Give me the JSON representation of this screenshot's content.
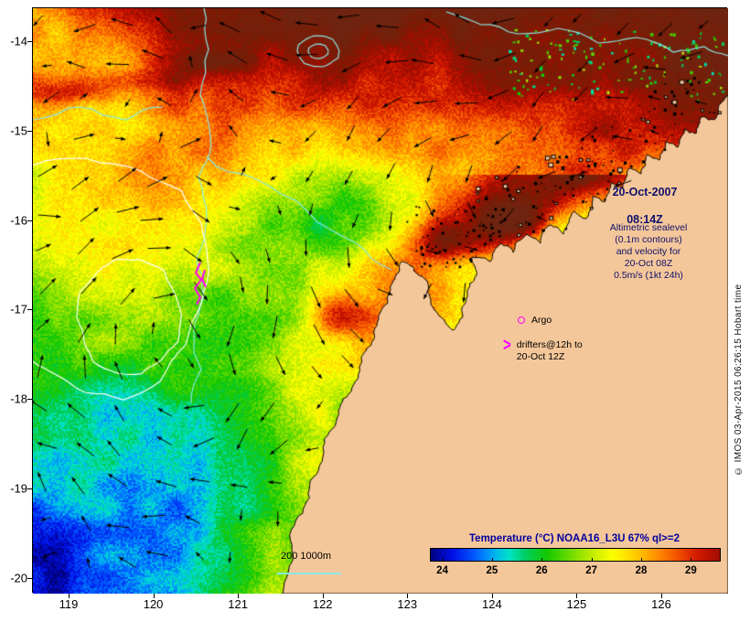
{
  "map": {
    "timestamp": {
      "date": "20-Oct-2007",
      "time": "08:14Z"
    },
    "altimetric_note": "Altimetric sealevel\n(0.1m contours)\nand velocity for\n20-Oct 08Z\n0.5m/s (1kt 24h)",
    "argo": {
      "label": "Argo"
    },
    "drifters": {
      "marker_glyph": ">",
      "label": "drifters@12h to\n20-Oct 12Z"
    },
    "scalebar_label": "200 1000m",
    "copyright": "© IMOS 03-Apr-2015 06:26:15 Hobart time",
    "axes": {
      "x_ticks": [
        "119",
        "120",
        "121",
        "122",
        "123",
        "124",
        "125",
        "126"
      ],
      "y_ticks": [
        "-14",
        "-15",
        "-16",
        "-17",
        "-18",
        "-19",
        "-20"
      ]
    },
    "colorbar": {
      "title": "Temperature (°C) NOAA16_L3U 67% ql>=2",
      "ticks": [
        "24",
        "25",
        "26",
        "27",
        "28",
        "29"
      ],
      "range": [
        23.75,
        29.6
      ]
    },
    "palette": [
      [
        23.7,
        "#000074"
      ],
      [
        24.2,
        "#0010e8"
      ],
      [
        24.7,
        "#0064ff"
      ],
      [
        25.05,
        "#00b4f0"
      ],
      [
        25.35,
        "#00e4c4"
      ],
      [
        25.7,
        "#00cc58"
      ],
      [
        26.1,
        "#14c800"
      ],
      [
        26.6,
        "#74dc00"
      ],
      [
        27.05,
        "#c8ee00"
      ],
      [
        27.45,
        "#ffff00"
      ],
      [
        27.95,
        "#ffc400"
      ],
      [
        28.35,
        "#ff8a00"
      ],
      [
        28.75,
        "#f25000"
      ],
      [
        29.15,
        "#d21800"
      ],
      [
        29.55,
        "#a40c00"
      ],
      [
        30.0,
        "#7c1a04"
      ],
      [
        30.6,
        "#6e2410"
      ]
    ],
    "colors": {
      "land": "#f4c79a",
      "coastline": "#000000",
      "contour_cyan": "#8ae8e6",
      "contour_white": "#ffffff",
      "marker_magenta": "#ff00ff",
      "annotation_blue": "#10106b",
      "colorbar_title_blue": "#0000a0",
      "arrow": "#000000"
    }
  }
}
